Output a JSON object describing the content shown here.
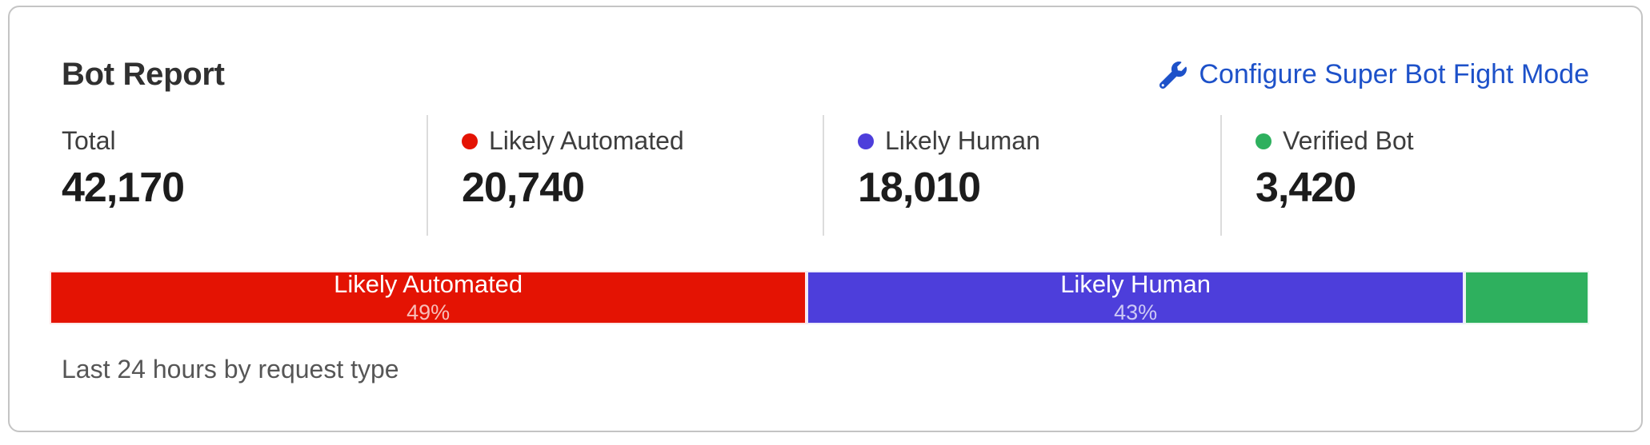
{
  "colors": {
    "likely_automated": "#e41303",
    "likely_human": "#4d3edb",
    "verified_bot": "#2eb05e",
    "link_blue": "#1d51c9"
  },
  "card": {
    "title": "Bot Report",
    "configure_link": {
      "icon": "wrench-icon",
      "label": "Configure Super Bot Fight Mode"
    },
    "stats": [
      {
        "label": "Total",
        "value": "42,170",
        "dot_color": ""
      },
      {
        "label": "Likely Automated",
        "value": "20,740",
        "dot_color": "#e41303"
      },
      {
        "label": "Likely Human",
        "value": "18,010",
        "dot_color": "#4d3edb"
      },
      {
        "label": "Verified Bot",
        "value": "3,420",
        "dot_color": "#2eb05e"
      }
    ],
    "caption": "Last 24 hours by request type"
  },
  "chart_data": {
    "type": "bar",
    "variant": "horizontal-stacked-percentage",
    "title": "Bot Report",
    "caption": "Last 24 hours by request type",
    "total": 42170,
    "legend_position": "top",
    "series": [
      {
        "name": "Likely Automated",
        "value": 20740,
        "percent_label": "49%",
        "color": "#e41303",
        "label_shown": true
      },
      {
        "name": "Likely Human",
        "value": 18010,
        "percent_label": "43%",
        "color": "#4d3edb",
        "label_shown": true
      },
      {
        "name": "Verified Bot",
        "value": 3420,
        "percent_label": "",
        "color": "#2eb05e",
        "label_shown": false
      }
    ]
  }
}
